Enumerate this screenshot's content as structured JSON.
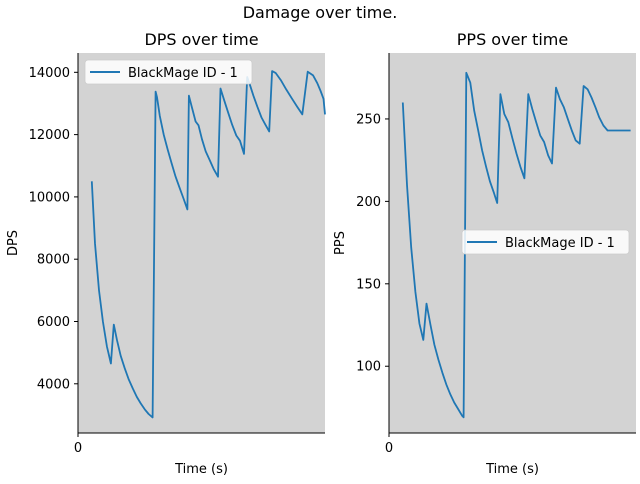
{
  "figure": {
    "suptitle": "Damage over time."
  },
  "colors": {
    "panel_bg": "#d3d3d3",
    "series_line": "#1f77b4",
    "legend_bg": "#ffffff",
    "axis": "#000000"
  },
  "chart_data": [
    {
      "type": "line",
      "title": "DPS over time",
      "xlabel": "Time (s)",
      "ylabel": "DPS",
      "xticks": [
        0
      ],
      "xlim": [
        0,
        100
      ],
      "yticks": [
        4000,
        6000,
        8000,
        10000,
        12000,
        14000
      ],
      "ylim": [
        2420,
        14620
      ],
      "grid": false,
      "legend_position": "upper left",
      "series": [
        {
          "name": "BlackMage ID - 1",
          "x": [
            5.6,
            6.9,
            8.5,
            10.1,
            11.7,
            13.3,
            14.5,
            15.8,
            17.3,
            18.9,
            20.5,
            22.2,
            23.8,
            25.4,
            27.0,
            28.6,
            30.2,
            31.4,
            32.0,
            33.1,
            34.7,
            36.3,
            37.9,
            39.5,
            41.1,
            42.7,
            44.3,
            44.9,
            46.2,
            47.6,
            48.8,
            50.2,
            51.7,
            53.3,
            54.9,
            56.7,
            57.7,
            59.2,
            60.6,
            62.4,
            64.1,
            65.6,
            67.2,
            68.5,
            69.6,
            71.0,
            72.6,
            74.3,
            75.8,
            77.4,
            78.6,
            80.0,
            82.1,
            84.3,
            86.5,
            88.7,
            90.8,
            93.0,
            95.2,
            96.9,
            98.2,
            99.4,
            100.0
          ],
          "values": [
            10500,
            8500,
            7000,
            6000,
            5200,
            4650,
            5900,
            5400,
            4900,
            4500,
            4150,
            3850,
            3580,
            3370,
            3180,
            3030,
            2920,
            13380,
            13200,
            12600,
            12000,
            11520,
            11080,
            10650,
            10300,
            9950,
            9600,
            13250,
            12850,
            12420,
            12300,
            11850,
            11460,
            11180,
            10900,
            10650,
            13480,
            13100,
            12750,
            12320,
            11970,
            11800,
            11380,
            13850,
            13600,
            13250,
            12900,
            12550,
            12330,
            12100,
            14040,
            13980,
            13750,
            13450,
            13170,
            12900,
            12650,
            14020,
            13900,
            13650,
            13400,
            13150,
            12650
          ]
        }
      ]
    },
    {
      "type": "line",
      "title": "PPS over time",
      "xlabel": "Time (s)",
      "ylabel": "PPS",
      "xticks": [
        0
      ],
      "xlim": [
        0,
        100
      ],
      "yticks": [
        100,
        150,
        200,
        250
      ],
      "ylim": [
        59.5,
        290
      ],
      "grid": false,
      "legend_position": "center right",
      "series": [
        {
          "name": "BlackMage ID - 1",
          "x": [
            5.6,
            7.3,
            9.0,
            10.7,
            12.3,
            13.9,
            15.2,
            16.8,
            18.4,
            20.0,
            21.6,
            23.2,
            24.8,
            26.4,
            28.0,
            29.6,
            30.2,
            31.3,
            32.9,
            34.5,
            36.1,
            37.7,
            39.3,
            40.9,
            42.5,
            43.8,
            45.1,
            46.7,
            48.3,
            50.0,
            51.6,
            53.2,
            54.8,
            56.4,
            58.0,
            59.6,
            61.2,
            62.8,
            64.4,
            66.0,
            67.6,
            69.2,
            70.8,
            72.4,
            74.0,
            75.6,
            77.2,
            78.8,
            80.4,
            82.0,
            83.6,
            85.1,
            86.8,
            88.5,
            90.1,
            91.7,
            93.3,
            94.9,
            96.5,
            97.8
          ],
          "values": [
            260,
            210,
            172,
            145,
            126,
            116,
            138,
            125,
            113,
            104,
            96,
            89,
            83,
            78,
            74,
            70,
            69,
            278,
            272,
            255,
            243,
            231,
            221,
            212,
            205,
            199,
            265,
            253,
            248,
            238,
            229,
            221,
            214,
            265,
            256,
            248,
            240,
            236,
            228,
            223,
            269,
            262,
            257,
            250,
            243,
            237,
            235,
            270,
            268,
            263,
            257,
            251,
            246,
            243,
            243,
            243,
            243,
            243,
            243,
            243
          ]
        }
      ]
    }
  ]
}
